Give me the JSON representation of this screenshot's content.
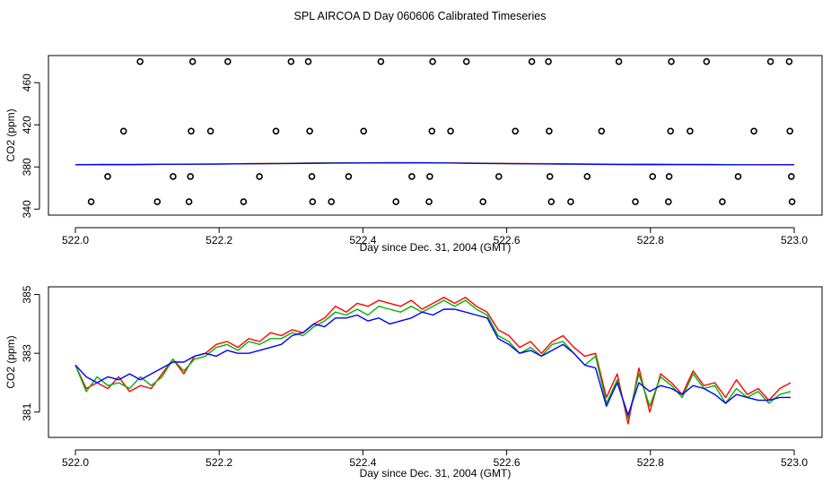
{
  "title": "SPL AIRCOA D  Day 060606  Calibrated Timeseries",
  "colors": {
    "red": "#ff0000",
    "green": "#00b400",
    "blue": "#0000ff",
    "magenta": "#ff00ff",
    "teal": "#00a0a0",
    "black": "#000000"
  },
  "chart_data": [
    {
      "type": "scatter",
      "title": "",
      "xlabel": "Day since Dec. 31, 2004 (GMT)",
      "ylabel": "CO2 (ppm)",
      "xlim": [
        522.0,
        523.0
      ],
      "ylim": [
        336,
        484
      ],
      "xticks": [
        "522.0",
        "522.2",
        "522.4",
        "522.6",
        "522.8",
        "523.0"
      ],
      "yticks": [
        "340",
        "380",
        "420",
        "460"
      ],
      "points": [
        {
          "x": 522.09,
          "y": 480
        },
        {
          "x": 522.163,
          "y": 480
        },
        {
          "x": 522.212,
          "y": 480
        },
        {
          "x": 522.3,
          "y": 480
        },
        {
          "x": 522.324,
          "y": 480
        },
        {
          "x": 522.425,
          "y": 480
        },
        {
          "x": 522.497,
          "y": 480
        },
        {
          "x": 522.544,
          "y": 480
        },
        {
          "x": 522.635,
          "y": 480
        },
        {
          "x": 522.658,
          "y": 480
        },
        {
          "x": 522.756,
          "y": 480
        },
        {
          "x": 522.829,
          "y": 480
        },
        {
          "x": 522.878,
          "y": 480
        },
        {
          "x": 522.967,
          "y": 480
        },
        {
          "x": 522.993,
          "y": 480
        },
        {
          "x": 522.067,
          "y": 414
        },
        {
          "x": 522.161,
          "y": 414
        },
        {
          "x": 522.188,
          "y": 414
        },
        {
          "x": 522.279,
          "y": 414
        },
        {
          "x": 522.326,
          "y": 414
        },
        {
          "x": 522.401,
          "y": 414
        },
        {
          "x": 522.496,
          "y": 414
        },
        {
          "x": 522.522,
          "y": 414
        },
        {
          "x": 522.612,
          "y": 414
        },
        {
          "x": 522.659,
          "y": 414
        },
        {
          "x": 522.732,
          "y": 414
        },
        {
          "x": 522.828,
          "y": 414
        },
        {
          "x": 522.855,
          "y": 414
        },
        {
          "x": 522.944,
          "y": 414
        },
        {
          "x": 522.994,
          "y": 414
        },
        {
          "x": 522.045,
          "y": 371
        },
        {
          "x": 522.136,
          "y": 371
        },
        {
          "x": 522.16,
          "y": 371
        },
        {
          "x": 522.256,
          "y": 371
        },
        {
          "x": 522.329,
          "y": 371
        },
        {
          "x": 522.38,
          "y": 371
        },
        {
          "x": 522.468,
          "y": 371
        },
        {
          "x": 522.493,
          "y": 371
        },
        {
          "x": 522.589,
          "y": 371
        },
        {
          "x": 522.66,
          "y": 371
        },
        {
          "x": 522.712,
          "y": 371
        },
        {
          "x": 522.803,
          "y": 371
        },
        {
          "x": 522.826,
          "y": 371
        },
        {
          "x": 522.922,
          "y": 371
        },
        {
          "x": 522.996,
          "y": 371
        },
        {
          "x": 522.022,
          "y": 347
        },
        {
          "x": 522.114,
          "y": 347
        },
        {
          "x": 522.158,
          "y": 347
        },
        {
          "x": 522.234,
          "y": 347
        },
        {
          "x": 522.33,
          "y": 347
        },
        {
          "x": 522.356,
          "y": 347
        },
        {
          "x": 522.446,
          "y": 347
        },
        {
          "x": 522.492,
          "y": 347
        },
        {
          "x": 522.567,
          "y": 347
        },
        {
          "x": 522.662,
          "y": 347
        },
        {
          "x": 522.689,
          "y": 347
        },
        {
          "x": 522.779,
          "y": 347
        },
        {
          "x": 522.825,
          "y": 347
        },
        {
          "x": 522.9,
          "y": 347
        },
        {
          "x": 522.997,
          "y": 347
        }
      ],
      "series": [
        {
          "name": "red",
          "color": "#ff0000",
          "values": [
            382.3,
            382.4,
            382.4,
            382.6,
            382.7,
            382.9,
            383.2,
            383.4,
            383.7,
            383.9,
            384.0,
            384.1,
            384.0,
            383.9,
            383.6,
            383.4,
            383.2,
            383.0,
            382.8,
            382.6,
            382.6,
            382.4,
            382.3,
            382.2,
            382.2,
            382.1
          ]
        },
        {
          "name": "green",
          "color": "#00b400",
          "values": [
            382.0,
            382.2,
            382.3,
            382.5,
            382.6,
            382.8,
            383.1,
            383.3,
            383.6,
            383.8,
            383.9,
            384.0,
            384.1,
            383.8,
            383.5,
            383.2,
            383.0,
            382.8,
            382.7,
            382.5,
            382.3,
            382.3,
            382.4,
            382.1,
            382.0,
            382.0
          ]
        },
        {
          "name": "blue",
          "color": "#0000ff",
          "values": [
            382.1,
            382.2,
            382.2,
            382.4,
            382.6,
            382.7,
            383.0,
            383.1,
            383.4,
            383.6,
            383.8,
            383.8,
            383.9,
            383.7,
            383.4,
            383.1,
            382.9,
            382.7,
            382.5,
            382.3,
            382.2,
            382.3,
            382.2,
            382.0,
            382.0,
            382.1
          ]
        }
      ]
    },
    {
      "type": "line",
      "title": "",
      "xlabel": "Day since Dec. 31, 2004 (GMT)",
      "ylabel": "CO2 (ppm)",
      "xlim": [
        522.0,
        523.0
      ],
      "ylim": [
        380.2,
        385.2
      ],
      "xticks": [
        "522.0",
        "522.2",
        "522.4",
        "522.6",
        "522.8",
        "523.0"
      ],
      "yticks": [
        "381",
        "383",
        "385"
      ],
      "series": [
        {
          "name": "red",
          "color": "#ff0000",
          "values": [
            382.6,
            381.8,
            382.0,
            381.8,
            382.2,
            381.7,
            381.9,
            381.8,
            382.3,
            382.8,
            382.3,
            382.9,
            383.0,
            383.3,
            383.4,
            383.2,
            383.5,
            383.4,
            383.7,
            383.6,
            383.8,
            383.7,
            384.0,
            384.2,
            384.6,
            384.4,
            384.7,
            384.6,
            384.8,
            384.7,
            384.6,
            384.8,
            384.5,
            384.7,
            384.9,
            384.7,
            384.9,
            384.6,
            384.4,
            383.8,
            383.6,
            383.2,
            383.4,
            383.0,
            383.4,
            383.6,
            383.2,
            382.9,
            383.0,
            381.5,
            382.3,
            380.6,
            382.5,
            381.0,
            382.3,
            382.0,
            381.6,
            382.4,
            381.9,
            382.0,
            381.5,
            382.1,
            381.6,
            381.8,
            381.4,
            381.8,
            382.0
          ]
        },
        {
          "name": "green",
          "color": "#00b400",
          "values": [
            382.6,
            381.7,
            382.2,
            381.9,
            382.0,
            381.8,
            382.2,
            381.9,
            382.2,
            382.8,
            382.4,
            382.8,
            382.9,
            383.2,
            383.3,
            383.1,
            383.4,
            383.3,
            383.5,
            383.5,
            383.7,
            383.6,
            383.9,
            384.1,
            384.4,
            384.3,
            384.5,
            384.3,
            384.6,
            384.5,
            384.4,
            384.6,
            384.4,
            384.6,
            384.8,
            384.6,
            384.8,
            384.5,
            384.3,
            383.6,
            383.4,
            383.0,
            383.2,
            382.9,
            383.3,
            383.4,
            383.0,
            382.6,
            382.9,
            381.3,
            382.1,
            380.8,
            382.3,
            381.2,
            382.2,
            381.9,
            381.5,
            382.3,
            381.8,
            381.9,
            381.3,
            381.8,
            381.5,
            381.7,
            381.3,
            381.6,
            381.7
          ]
        },
        {
          "name": "blue",
          "color": "#0000ff",
          "values": [
            382.6,
            382.2,
            382.0,
            382.2,
            382.1,
            382.3,
            382.1,
            382.3,
            382.5,
            382.7,
            382.7,
            382.9,
            383.0,
            382.9,
            383.1,
            383.0,
            383.0,
            383.1,
            383.2,
            383.3,
            383.6,
            383.7,
            384.0,
            383.9,
            384.2,
            384.2,
            384.3,
            384.1,
            384.2,
            384.0,
            384.1,
            384.2,
            384.4,
            384.3,
            384.5,
            384.5,
            384.4,
            384.3,
            384.2,
            383.5,
            383.3,
            383.0,
            383.1,
            382.9,
            383.1,
            383.3,
            383.0,
            382.6,
            382.5,
            381.2,
            382.0,
            380.9,
            382.0,
            381.7,
            381.9,
            381.8,
            381.6,
            381.9,
            381.8,
            381.6,
            381.3,
            381.6,
            381.5,
            381.4,
            381.4,
            381.5,
            381.5
          ]
        }
      ]
    }
  ]
}
